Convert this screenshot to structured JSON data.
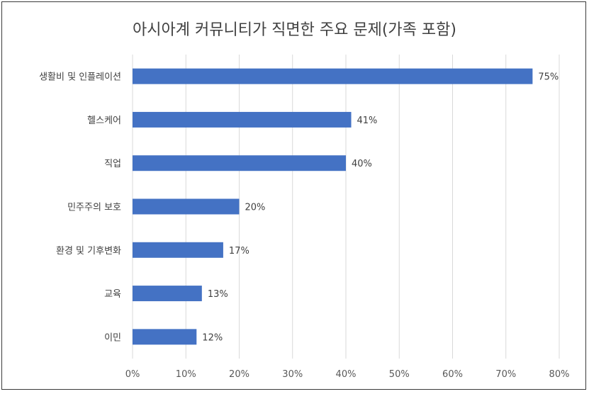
{
  "chart_data": {
    "type": "bar",
    "orientation": "horizontal",
    "title": "아시아계 커뮤니티가 직면한 주요 문제(가족 포함)",
    "categories": [
      "생활비 및 인플레이션",
      "헬스케어",
      "직업",
      "민주주의 보호",
      "환경 및 기후변화",
      "교육",
      "이민"
    ],
    "values": [
      75,
      41,
      40,
      20,
      17,
      13,
      12
    ],
    "data_labels": [
      "75%",
      "41%",
      "40%",
      "20%",
      "17%",
      "13%",
      "12%"
    ],
    "xlim": [
      0,
      80
    ],
    "x_ticks": [
      0,
      10,
      20,
      30,
      40,
      50,
      60,
      70,
      80
    ],
    "x_tick_labels": [
      "0%",
      "10%",
      "20%",
      "30%",
      "40%",
      "50%",
      "60%",
      "70%",
      "80%"
    ],
    "grid": true,
    "legend": "none",
    "colors": {
      "bar": "#4472C4",
      "grid": "#d9d9d9"
    }
  }
}
